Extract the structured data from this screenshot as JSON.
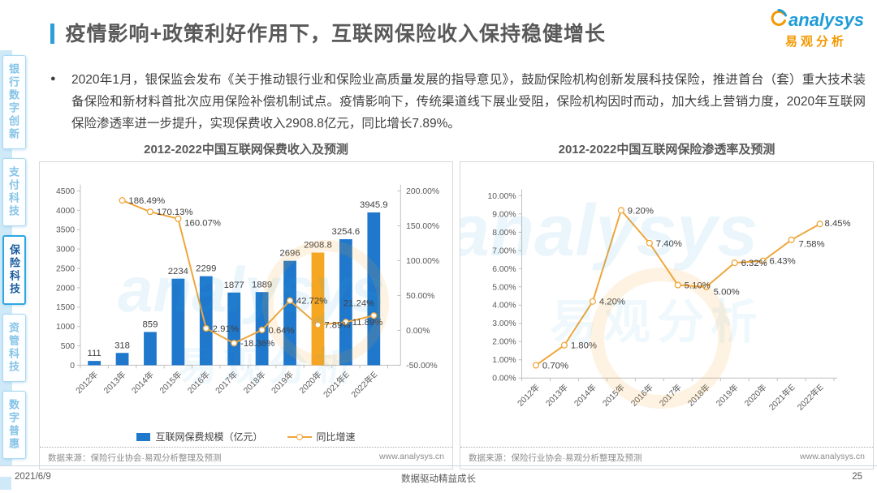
{
  "page": {
    "title": "疫情影响+政策利好作用下，互联网保险收入保持稳健增长",
    "accent_color": "#2D9FD8",
    "logo": {
      "brand": "analysys",
      "brand_cn": "易观分析",
      "brand_color": "#1E9CD7",
      "cn_color": "#F39800",
      "icon": "analysys-swirl-icon"
    },
    "bullet_icon": "●",
    "bullet": "2020年1月，银保监会发布《关于推动银行业和保险业高质量发展的指导意见》，鼓励保险机构创新发展科技保险，推进首台（套）重大技术装备保险和新材料首批次应用保险补偿机制试点。疫情影响下，传统渠道线下展业受阻，保险机构因时而动，加大线上营销力度，2020年互联网保险渗透率进一步提升，实现保费收入2908.8亿元，同比增长7.89%。",
    "watermark": {
      "brand": "analysys",
      "cn": "易观分析"
    },
    "footer": {
      "date": "2021/6/9",
      "slogan": "数据驱动精益成长",
      "page_number": "25"
    }
  },
  "sidebar": {
    "active_index": 2,
    "items": [
      {
        "label": "银行数字创新"
      },
      {
        "label": "支付科技"
      },
      {
        "label": "保险科技"
      },
      {
        "label": "资管科技"
      },
      {
        "label": "数字普惠"
      }
    ]
  },
  "chart_footer": {
    "source": "数据来源：保险行业协会·易观分析整理及预测",
    "site": "www.analysys.cn"
  },
  "chart_data": [
    {
      "type": "bar",
      "title": "2012-2022中国互联网保费收入及预测",
      "categories": [
        "2012年",
        "2013年",
        "2014年",
        "2015年",
        "2016年",
        "2017年",
        "2018年",
        "2019年",
        "2020年",
        "2021年E",
        "2022年E"
      ],
      "series": [
        {
          "name": "互联网保费规模（亿元）",
          "kind": "bar",
          "axis": "left",
          "values": [
            111,
            318,
            859,
            2234,
            2299,
            1877,
            1889,
            2696,
            2908.8,
            3254.6,
            3945.9
          ],
          "labels": [
            "111",
            "318",
            "859",
            "2234",
            "2299",
            "1877",
            "1889",
            "2696",
            "2908.8",
            "3254.6",
            "3945.9"
          ],
          "color": "#1F78CC",
          "highlight_index": 8,
          "highlight_color": "#F5A623"
        },
        {
          "name": "同比增速",
          "kind": "line",
          "axis": "right",
          "values": [
            null,
            186.49,
            170.13,
            160.07,
            2.91,
            -18.36,
            0.64,
            42.72,
            7.89,
            11.89,
            21.24
          ],
          "labels": [
            null,
            "186.49%",
            "170.13%",
            "160.07%",
            "2.91%",
            "-18.36%",
            "0.64%",
            "42.72%",
            "7.89%",
            "11.89%",
            "21.24%"
          ],
          "color": "#EFA63B"
        }
      ],
      "y_left": {
        "min": 0,
        "max": 4500,
        "step": 500
      },
      "y_right": {
        "min": -50,
        "max": 200,
        "step": 50,
        "suffix": "%",
        "decimals": 2
      },
      "ylim_left": [
        0,
        4500
      ],
      "ylim_right": [
        -50,
        200
      ],
      "xlabel": "",
      "ylabel": "",
      "grid": false,
      "legend_position": "bottom",
      "label_offsets": {
        "3": [
          8,
          9
        ],
        "10": [
          -38,
          -12
        ]
      }
    },
    {
      "type": "line",
      "title": "2012-2022中国互联网保险渗透率及预测",
      "categories": [
        "2012年",
        "2013年",
        "2014年",
        "2015年",
        "2016年",
        "2017年",
        "2018年",
        "2019年",
        "2020年",
        "2021年E",
        "2022年E"
      ],
      "series": [
        {
          "name": "互联网保险渗透率",
          "kind": "line",
          "axis": "left",
          "values": [
            0.7,
            1.8,
            4.2,
            9.2,
            7.4,
            5.1,
            5.0,
            6.32,
            6.43,
            7.58,
            8.45
          ],
          "labels": [
            "0.70%",
            "1.80%",
            "4.20%",
            "9.20%",
            "7.40%",
            "5.10%",
            "5.00%",
            "6.32%",
            "6.43%",
            "7.58%",
            "8.45%"
          ],
          "color": "#EFA63B"
        }
      ],
      "y_left": {
        "min": 0,
        "max": 10,
        "step": 1,
        "suffix": "%",
        "decimals": 2
      },
      "ylim_left": [
        0,
        10
      ],
      "xlabel": "",
      "ylabel": "",
      "grid": false,
      "legend_position": "none",
      "label_offsets": {
        "6": [
          9,
          10
        ],
        "9": [
          9,
          9
        ],
        "10": [
          6,
          3
        ]
      }
    }
  ]
}
